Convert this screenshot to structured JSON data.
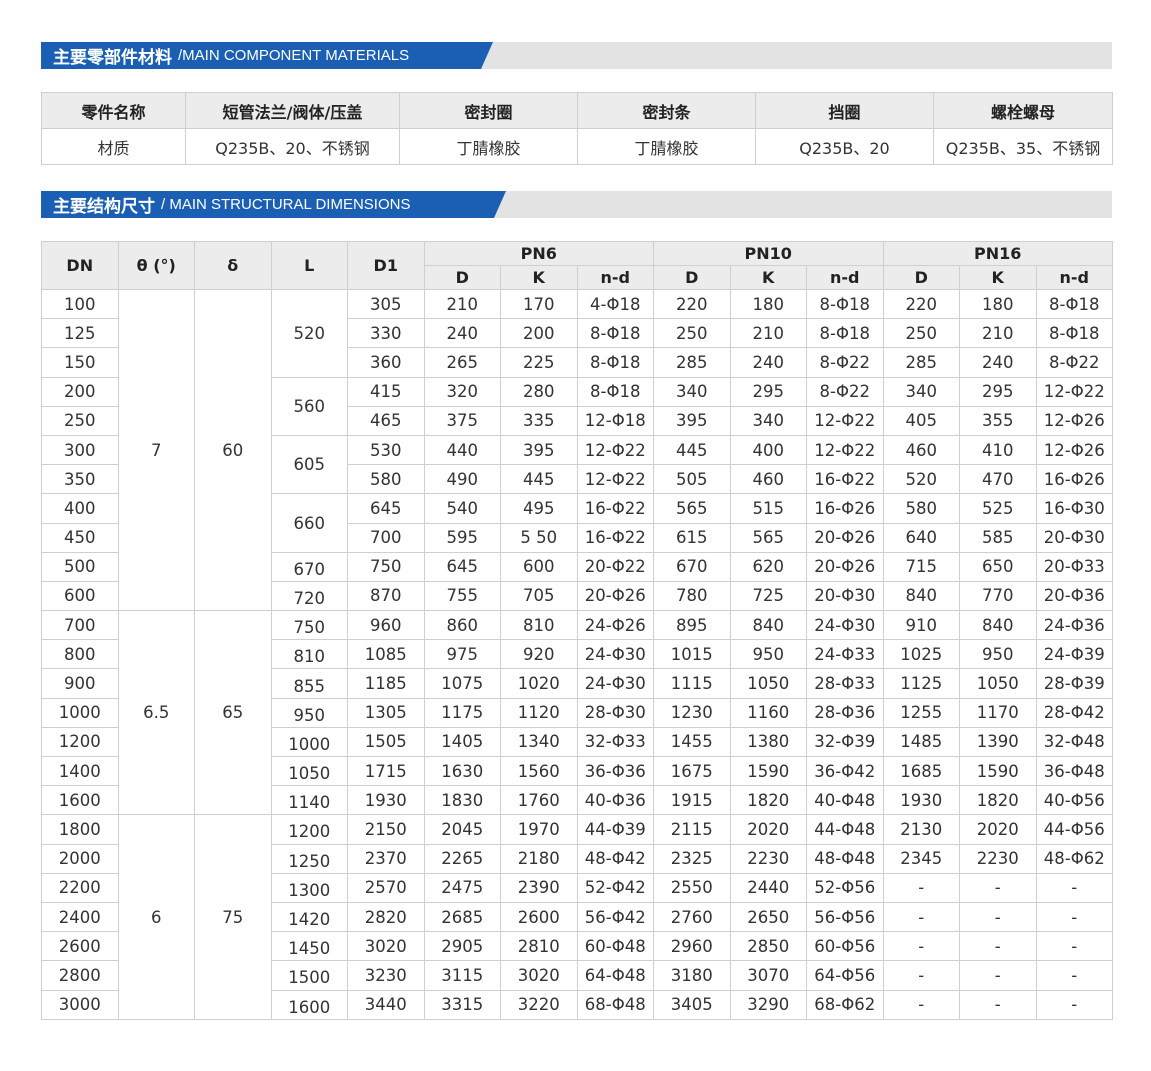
{
  "section1": {
    "title_cn": "主要零部件材料",
    "title_en": "/MAIN COMPONENT MATERIALS"
  },
  "materials": {
    "header": [
      "零件名称",
      "短管法兰/阀体/压盖",
      "密封圈",
      "密封条",
      "挡圈",
      "螺栓螺母"
    ],
    "row": [
      "材质",
      "Q235B、20、不锈钢",
      "丁腈橡胶",
      "丁腈橡胶",
      "Q235B、20",
      "Q235B、35、不锈钢"
    ]
  },
  "section2": {
    "title_cn": "主要结构尺寸",
    "title_en": "/ MAIN STRUCTURAL DIMENSIONS"
  },
  "dimensions": {
    "headers": {
      "dn": "DN",
      "theta": "θ (°)",
      "delta": "δ",
      "l": "L",
      "d1": "D1",
      "groups": [
        "PN6",
        "PN10",
        "PN16"
      ],
      "sub": [
        "D",
        "K",
        "n-d"
      ]
    },
    "theta_groups": [
      {
        "value": "7",
        "rows": 11
      },
      {
        "value": "6.5",
        "rows": 7
      },
      {
        "value": "6",
        "rows": 7
      }
    ],
    "delta_groups": [
      {
        "value": "60",
        "rows": 11
      },
      {
        "value": "65",
        "rows": 7
      },
      {
        "value": "75",
        "rows": 7
      }
    ],
    "l_groups": [
      {
        "value": "520",
        "rows": 3
      },
      {
        "value": "560",
        "rows": 2
      },
      {
        "value": "605",
        "rows": 2
      },
      {
        "value": "660",
        "rows": 2
      },
      {
        "value": "670",
        "rows": 1
      },
      {
        "value": "720",
        "rows": 1
      },
      {
        "value": "750",
        "rows": 1
      },
      {
        "value": "810",
        "rows": 1
      },
      {
        "value": "855",
        "rows": 1
      },
      {
        "value": "950",
        "rows": 1
      },
      {
        "value": "1000",
        "rows": 1
      },
      {
        "value": "1050",
        "rows": 1
      },
      {
        "value": "1140",
        "rows": 1
      },
      {
        "value": "1200",
        "rows": 1
      },
      {
        "value": "1250",
        "rows": 1
      },
      {
        "value": "1300",
        "rows": 1
      },
      {
        "value": "1420",
        "rows": 1
      },
      {
        "value": "1450",
        "rows": 1
      },
      {
        "value": "1500",
        "rows": 1
      },
      {
        "value": "1600",
        "rows": 1
      }
    ],
    "rows": [
      [
        "100",
        "305",
        "210",
        "170",
        "4-Φ18",
        "220",
        "180",
        "8-Φ18",
        "220",
        "180",
        "8-Φ18"
      ],
      [
        "125",
        "330",
        "240",
        "200",
        "8-Φ18",
        "250",
        "210",
        "8-Φ18",
        "250",
        "210",
        "8-Φ18"
      ],
      [
        "150",
        "360",
        "265",
        "225",
        "8-Φ18",
        "285",
        "240",
        "8-Φ22",
        "285",
        "240",
        "8-Φ22"
      ],
      [
        "200",
        "415",
        "320",
        "280",
        "8-Φ18",
        "340",
        "295",
        "8-Φ22",
        "340",
        "295",
        "12-Φ22"
      ],
      [
        "250",
        "465",
        "375",
        "335",
        "12-Φ18",
        "395",
        "340",
        "12-Φ22",
        "405",
        "355",
        "12-Φ26"
      ],
      [
        "300",
        "530",
        "440",
        "395",
        "12-Φ22",
        "445",
        "400",
        "12-Φ22",
        "460",
        "410",
        "12-Φ26"
      ],
      [
        "350",
        "580",
        "490",
        "445",
        "12-Φ22",
        "505",
        "460",
        "16-Φ22",
        "520",
        "470",
        "16-Φ26"
      ],
      [
        "400",
        "645",
        "540",
        "495",
        "16-Φ22",
        "565",
        "515",
        "16-Φ26",
        "580",
        "525",
        "16-Φ30"
      ],
      [
        "450",
        "700",
        "595",
        "5 50",
        "16-Φ22",
        "615",
        "565",
        "20-Φ26",
        "640",
        "585",
        "20-Φ30"
      ],
      [
        "500",
        "750",
        "645",
        "600",
        "20-Φ22",
        "670",
        "620",
        "20-Φ26",
        "715",
        "650",
        "20-Φ33"
      ],
      [
        "600",
        "870",
        "755",
        "705",
        "20-Φ26",
        "780",
        "725",
        "20-Φ30",
        "840",
        "770",
        "20-Φ36"
      ],
      [
        "700",
        "960",
        "860",
        "810",
        "24-Φ26",
        "895",
        "840",
        "24-Φ30",
        "910",
        "840",
        "24-Φ36"
      ],
      [
        "800",
        "1085",
        "975",
        "920",
        "24-Φ30",
        "1015",
        "950",
        "24-Φ33",
        "1025",
        "950",
        "24-Φ39"
      ],
      [
        "900",
        "1185",
        "1075",
        "1020",
        "24-Φ30",
        "1115",
        "1050",
        "28-Φ33",
        "1125",
        "1050",
        "28-Φ39"
      ],
      [
        "1000",
        "1305",
        "1175",
        "1120",
        "28-Φ30",
        "1230",
        "1160",
        "28-Φ36",
        "1255",
        "1170",
        "28-Φ42"
      ],
      [
        "1200",
        "1505",
        "1405",
        "1340",
        "32-Φ33",
        "1455",
        "1380",
        "32-Φ39",
        "1485",
        "1390",
        "32-Φ48"
      ],
      [
        "1400",
        "1715",
        "1630",
        "1560",
        "36-Φ36",
        "1675",
        "1590",
        "36-Φ42",
        "1685",
        "1590",
        "36-Φ48"
      ],
      [
        "1600",
        "1930",
        "1830",
        "1760",
        "40-Φ36",
        "1915",
        "1820",
        "40-Φ48",
        "1930",
        "1820",
        "40-Φ56"
      ],
      [
        "1800",
        "2150",
        "2045",
        "1970",
        "44-Φ39",
        "2115",
        "2020",
        "44-Φ48",
        "2130",
        "2020",
        "44-Φ56"
      ],
      [
        "2000",
        "2370",
        "2265",
        "2180",
        "48-Φ42",
        "2325",
        "2230",
        "48-Φ48",
        "2345",
        "2230",
        "48-Φ62"
      ],
      [
        "2200",
        "2570",
        "2475",
        "2390",
        "52-Φ42",
        "2550",
        "2440",
        "52-Φ56",
        "-",
        "-",
        "-"
      ],
      [
        "2400",
        "2820",
        "2685",
        "2600",
        "56-Φ42",
        "2760",
        "2650",
        "56-Φ56",
        "-",
        "-",
        "-"
      ],
      [
        "2600",
        "3020",
        "2905",
        "2810",
        "60-Φ48",
        "2960",
        "2850",
        "60-Φ56",
        "-",
        "-",
        "-"
      ],
      [
        "2800",
        "3230",
        "3115",
        "3020",
        "64-Φ48",
        "3180",
        "3070",
        "64-Φ56",
        "-",
        "-",
        "-"
      ],
      [
        "3000",
        "3440",
        "3315",
        "3220",
        "68-Φ48",
        "3405",
        "3290",
        "68-Φ62",
        "-",
        "-",
        "-"
      ]
    ]
  },
  "colors": {
    "accent": "#1a5fb4",
    "bar_gray": "#e3e3e3",
    "header_gray": "#ececec"
  }
}
